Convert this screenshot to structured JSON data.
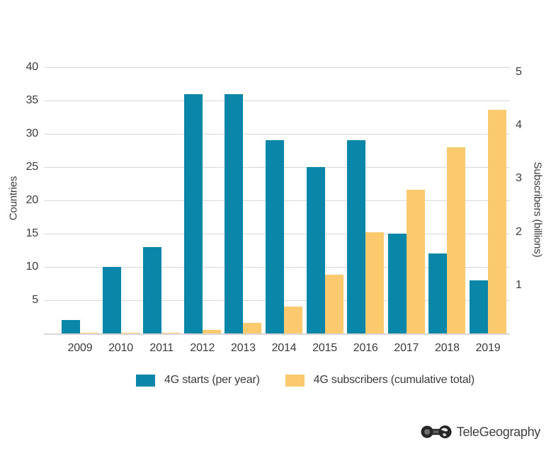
{
  "chart_data": {
    "type": "bar",
    "title": "",
    "categories": [
      "2009",
      "2010",
      "2011",
      "2012",
      "2013",
      "2014",
      "2015",
      "2016",
      "2017",
      "2018",
      "2019"
    ],
    "series": [
      {
        "name": "4G starts (per year)",
        "axis": "left",
        "color": "#0a87a8",
        "values": [
          2,
          10,
          13,
          36,
          36,
          29,
          25,
          29,
          15,
          12,
          8
        ]
      },
      {
        "name": "4G subscribers (cumulative total)",
        "axis": "right",
        "color": "#fcca6e",
        "values": [
          0.01,
          0.01,
          0.02,
          0.07,
          0.2,
          0.5,
          1.1,
          1.9,
          2.7,
          3.5,
          4.2
        ]
      }
    ],
    "left_axis": {
      "label": "Countries",
      "ticks": [
        5,
        10,
        15,
        20,
        25,
        30,
        35,
        40
      ],
      "min": 0,
      "max": 40
    },
    "right_axis": {
      "label": "Subscribers (billions)",
      "ticks": [
        1,
        2,
        3,
        4,
        5
      ],
      "min": 0,
      "max": 5
    },
    "grid": true,
    "legend_position": "bottom",
    "gridline_color": "#d8d8d8",
    "text_color": "#3b3b3b"
  },
  "branding": {
    "logo_text": "TeleGeography",
    "logo_icon": "telegeography-globe-handset-icon"
  }
}
